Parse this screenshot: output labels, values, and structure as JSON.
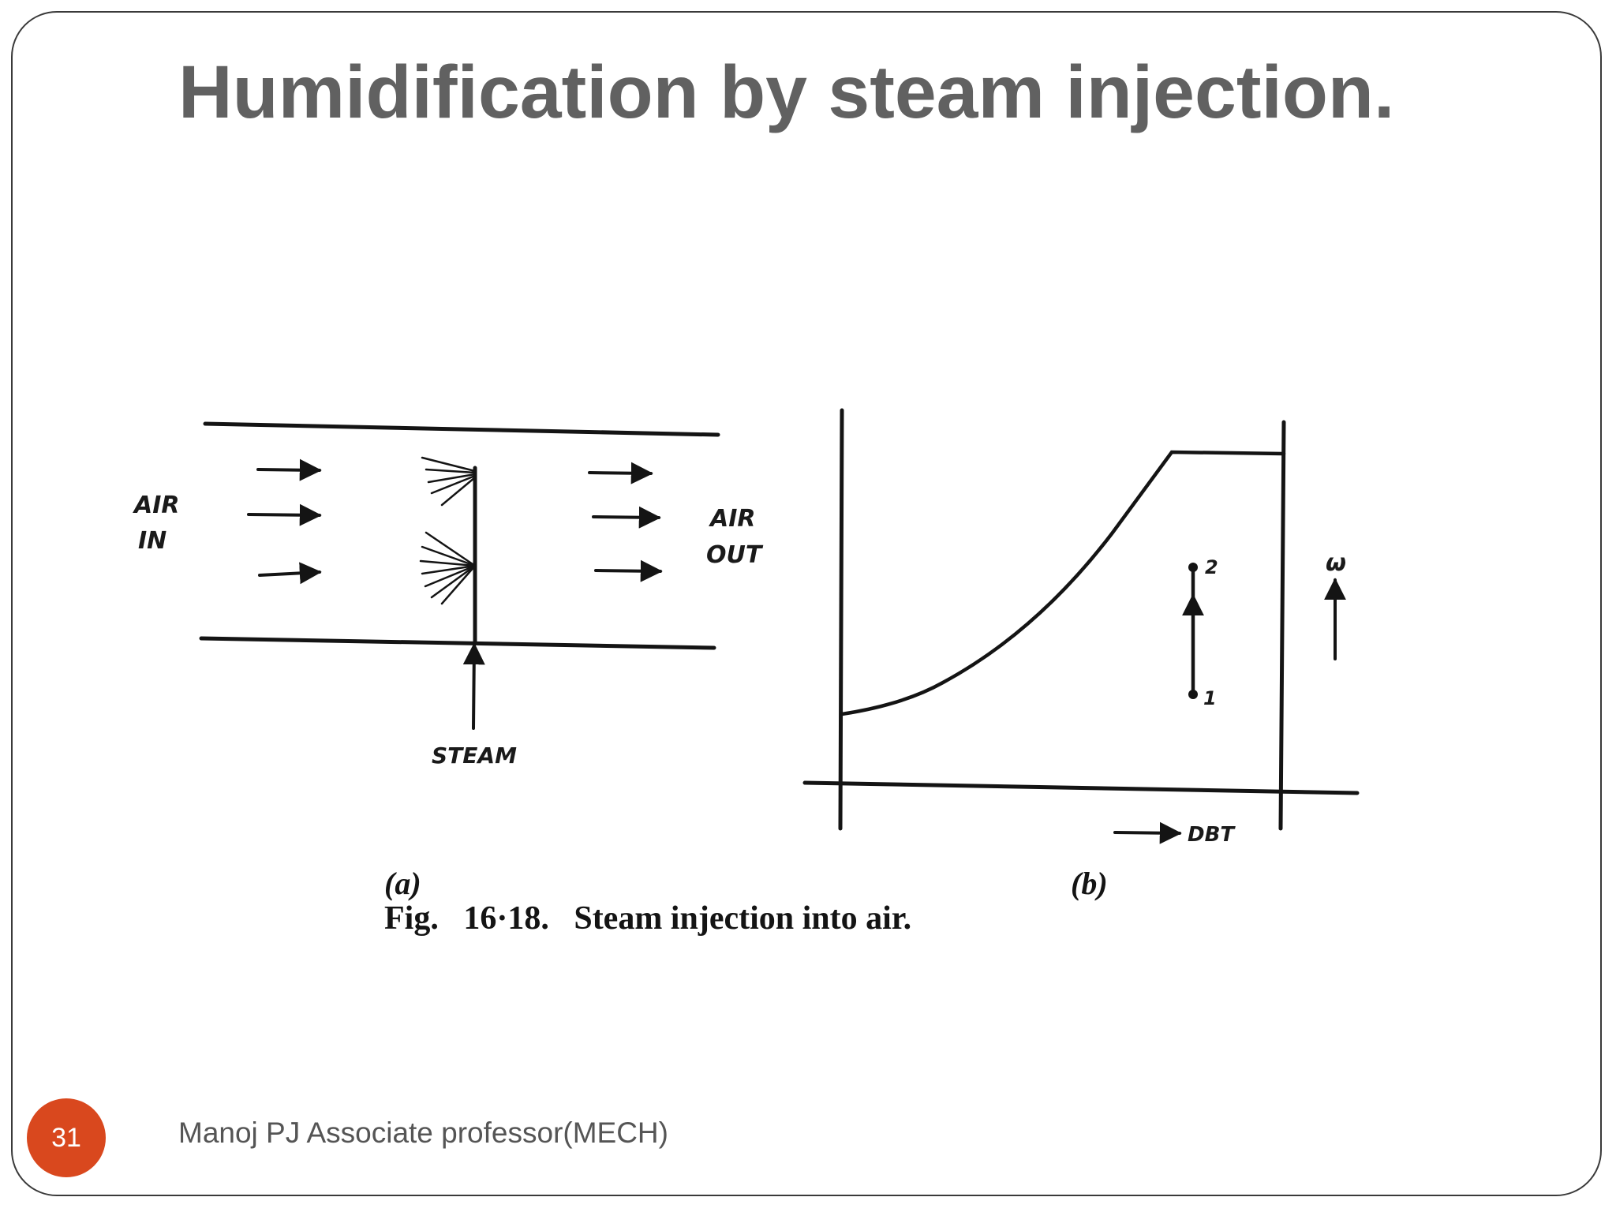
{
  "slide": {
    "title": "Humidification by steam injection.",
    "page_number": "31",
    "footer": "Manoj PJ Associate professor(MECH)"
  },
  "figure": {
    "duct_labels": {
      "air_in_line1": "AIR",
      "air_in_line2": "IN",
      "air_out_line1": "AIR",
      "air_out_line2": "OUT",
      "steam": "STEAM"
    },
    "chart_labels": {
      "point_1": "1",
      "point_2": "2",
      "omega_axis": "ω",
      "dbt_axis": "DBT"
    },
    "part_a": "(a)",
    "part_b": "(b)",
    "caption": "Fig.   16·18.   Steam injection into air."
  },
  "colors": {
    "accent_badge": "#d9481e",
    "title_text": "#616161",
    "footer_text": "#555555",
    "ink": "#141414"
  }
}
